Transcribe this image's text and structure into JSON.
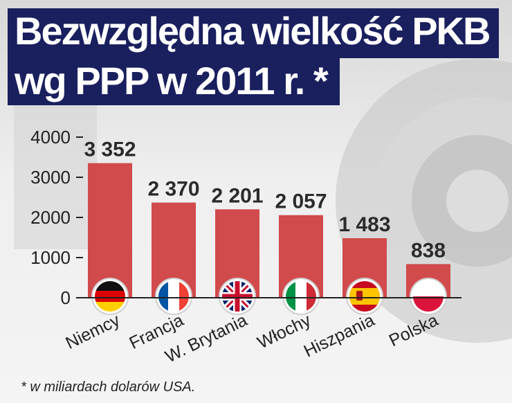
{
  "title_line1": "Bezwzględna wielkość PKB",
  "title_line2": "wg PPP w 2011 r. *",
  "footnote": "* w miliardach dolarów USA.",
  "colors": {
    "bar": "#d14a4c",
    "title_bg": "#1a1f5e"
  },
  "chart_data": {
    "type": "bar",
    "title": "Bezwzględna wielkość PKB wg PPP w 2011 r. *",
    "categories": [
      "Niemcy",
      "Francja",
      "W. Brytania",
      "Włochy",
      "Hiszpania",
      "Polska"
    ],
    "values": [
      3352,
      2370,
      2201,
      2057,
      1483,
      838
    ],
    "value_labels": [
      "3 352",
      "2 370",
      "2 201",
      "2 057",
      "1 483",
      "838"
    ],
    "flags": [
      "germany-flag-icon",
      "france-flag-icon",
      "uk-flag-icon",
      "italy-flag-icon",
      "spain-flag-icon",
      "poland-flag-icon"
    ],
    "ylim": [
      0,
      4000
    ],
    "yticks": [
      0,
      1000,
      2000,
      3000,
      4000
    ],
    "xlabel": "",
    "ylabel": "",
    "grid": false
  }
}
